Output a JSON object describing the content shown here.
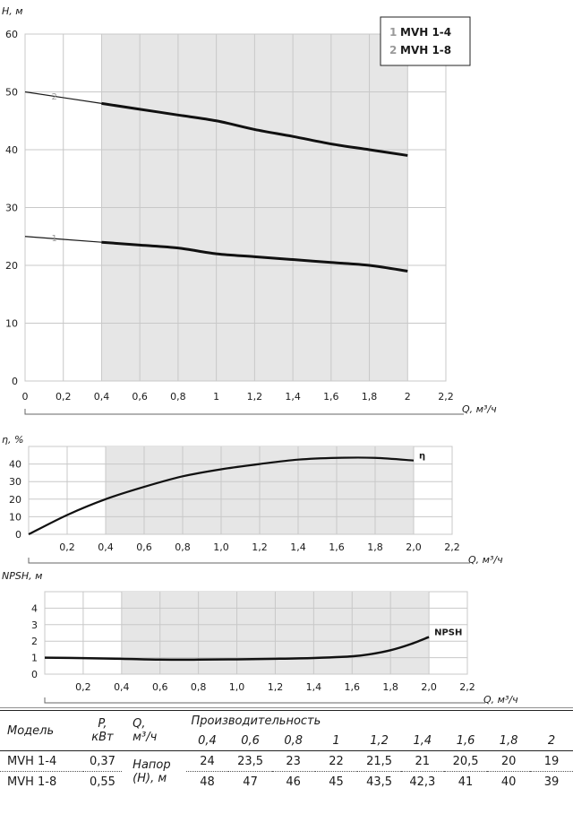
{
  "chart_data": [
    {
      "type": "line",
      "id": "head",
      "ylabel": "H, м",
      "xlabel": "Q, м³/ч",
      "xlim": [
        0,
        2.2
      ],
      "ylim": [
        0,
        60
      ],
      "xticks": [
        "0",
        "0,2",
        "0,4",
        "0,6",
        "0,8",
        "1",
        "1,2",
        "1,4",
        "1,6",
        "1,8",
        "2",
        "2,2"
      ],
      "yticks": [
        "0",
        "10",
        "20",
        "30",
        "40",
        "50",
        "60"
      ],
      "working_range": [
        0.4,
        2.0
      ],
      "legend": {
        "placement": "top-right",
        "entries": [
          {
            "num": "1",
            "label": "MVH 1-4"
          },
          {
            "num": "2",
            "label": "MVH 1-8"
          }
        ]
      },
      "series": [
        {
          "label": "1",
          "x": [
            0,
            0.2,
            0.4,
            0.6,
            0.8,
            1.0,
            1.2,
            1.4,
            1.6,
            1.8,
            2.0
          ],
          "y": [
            25,
            24.5,
            24,
            23.5,
            23,
            22,
            21.5,
            21,
            20.5,
            20,
            19
          ]
        },
        {
          "label": "2",
          "x": [
            0,
            0.2,
            0.4,
            0.6,
            0.8,
            1.0,
            1.2,
            1.4,
            1.6,
            1.8,
            2.0
          ],
          "y": [
            50,
            49,
            48,
            47,
            46,
            45,
            43.5,
            42.3,
            41,
            40,
            39
          ]
        }
      ]
    },
    {
      "type": "line",
      "id": "efficiency",
      "ylabel": "η, %",
      "xlabel": "Q, м³/ч",
      "xlim": [
        0,
        2.2
      ],
      "ylim": [
        0,
        50
      ],
      "xticks": [
        "0,2",
        "0,4",
        "0,6",
        "0,8",
        "1,0",
        "1,2",
        "1,4",
        "1,6",
        "1,8",
        "2,0",
        "2,2"
      ],
      "yticks": [
        "0",
        "10",
        "20",
        "30",
        "40"
      ],
      "working_range": [
        0.4,
        2.0
      ],
      "series": [
        {
          "label": "η",
          "x": [
            0,
            0.2,
            0.4,
            0.6,
            0.8,
            1.0,
            1.2,
            1.4,
            1.6,
            1.8,
            2.0
          ],
          "y": [
            0,
            11,
            20,
            27,
            33,
            37,
            40,
            42.5,
            43.5,
            43.5,
            42
          ]
        }
      ]
    },
    {
      "type": "line",
      "id": "npsh",
      "ylabel": "NPSH, м",
      "xlabel": "Q, м³/ч",
      "xlim": [
        0,
        2.2
      ],
      "ylim": [
        0,
        5
      ],
      "xticks": [
        "0,2",
        "0,4",
        "0,6",
        "0,8",
        "1,0",
        "1,2",
        "1,4",
        "1,6",
        "1,8",
        "2,0",
        "2,2"
      ],
      "yticks": [
        "0",
        "1",
        "2",
        "3",
        "4"
      ],
      "working_range": [
        0.4,
        2.0
      ],
      "series": [
        {
          "label": "NPSH",
          "x": [
            0,
            0.2,
            0.4,
            0.6,
            0.8,
            1.0,
            1.2,
            1.4,
            1.6,
            1.7,
            1.8,
            1.9,
            2.0
          ],
          "y": [
            1.0,
            0.97,
            0.93,
            0.88,
            0.88,
            0.9,
            0.93,
            0.98,
            1.08,
            1.22,
            1.45,
            1.8,
            2.25
          ]
        }
      ]
    }
  ],
  "table": {
    "col_model": "Модель",
    "col_power": [
      "P,",
      "кВт"
    ],
    "col_q": [
      "Q,",
      "м³/ч"
    ],
    "col_perf": "Производительность",
    "q_values": [
      "0,4",
      "0,6",
      "0,8",
      "1",
      "1,2",
      "1,4",
      "1,6",
      "1,8",
      "2"
    ],
    "head_label": [
      "Напор",
      "(Н), м"
    ],
    "rows": [
      {
        "model": "MVH 1-4",
        "power": "0,37",
        "values": [
          "24",
          "23,5",
          "23",
          "22",
          "21,5",
          "21",
          "20,5",
          "20",
          "19"
        ]
      },
      {
        "model": "MVH 1-8",
        "power": "0,55",
        "values": [
          "48",
          "47",
          "46",
          "45",
          "43,5",
          "42,3",
          "41",
          "40",
          "39"
        ]
      }
    ]
  }
}
